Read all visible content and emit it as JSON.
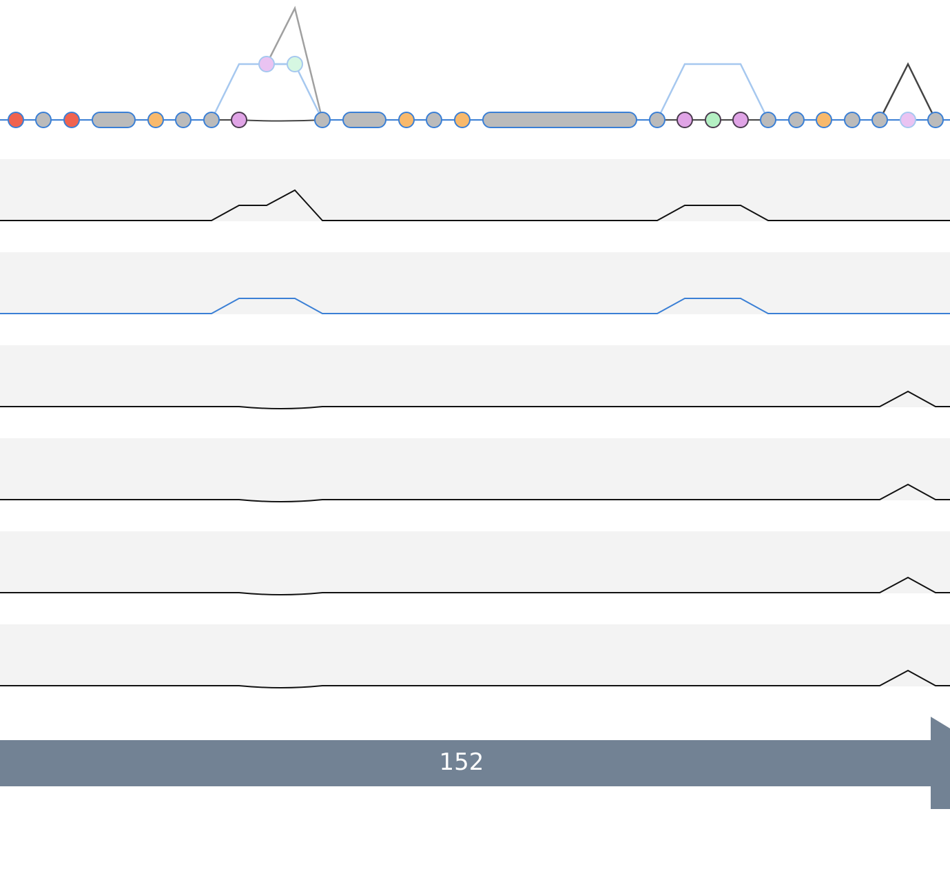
{
  "colors": {
    "background": "#ffffff",
    "track_background": "#f3f3f3",
    "backbone": "#3a7fd5",
    "alt_path": "#a6c8ef",
    "dark_path": "#444444",
    "gray_path": "#a0a0a0",
    "node_gray": "#bbbbbb",
    "node_red": "#f0634f",
    "node_orange": "#f8b96c",
    "node_pink": "#e0a4e6",
    "node_pink_light": "#eac3f2",
    "node_green": "#b4f0c3",
    "node_green_light": "#d6f7e2",
    "node_stroke_dark": "#4a3a4e",
    "track_line_black": "#111111",
    "track_line_blue": "#3a7fd5",
    "arrow_fill": "#728294",
    "arrow_text": "#ffffff"
  },
  "graph": {
    "nodes": [
      {
        "shape": "circle",
        "fill": "node_red",
        "stroke": "backbone"
      },
      {
        "shape": "circle",
        "fill": "node_gray",
        "stroke": "backbone"
      },
      {
        "shape": "circle",
        "fill": "node_red",
        "stroke": "backbone"
      },
      {
        "shape": "pill",
        "fill": "node_gray",
        "stroke": "backbone"
      },
      {
        "shape": "circle",
        "fill": "node_orange",
        "stroke": "backbone"
      },
      {
        "shape": "circle",
        "fill": "node_gray",
        "stroke": "backbone"
      },
      {
        "shape": "circle",
        "fill": "node_gray",
        "stroke": "backbone"
      },
      {
        "shape": "circle",
        "fill": "node_pink",
        "stroke": "node_stroke_dark"
      },
      {
        "shape": "circle",
        "fill": "node_pink_light",
        "stroke": "alt_path"
      },
      {
        "shape": "circle",
        "fill": "node_green_light",
        "stroke": "alt_path"
      },
      {
        "shape": "circle",
        "fill": "node_gray",
        "stroke": "backbone"
      },
      {
        "shape": "pill",
        "fill": "node_gray",
        "stroke": "backbone"
      },
      {
        "shape": "circle",
        "fill": "node_orange",
        "stroke": "backbone"
      },
      {
        "shape": "circle",
        "fill": "node_gray",
        "stroke": "backbone"
      },
      {
        "shape": "circle",
        "fill": "node_orange",
        "stroke": "backbone"
      },
      {
        "shape": "pill",
        "fill": "node_gray",
        "stroke": "backbone"
      },
      {
        "shape": "circle",
        "fill": "node_gray",
        "stroke": "backbone"
      },
      {
        "shape": "circle",
        "fill": "node_pink",
        "stroke": "node_stroke_dark"
      },
      {
        "shape": "circle",
        "fill": "node_green",
        "stroke": "node_stroke_dark"
      },
      {
        "shape": "circle",
        "fill": "node_pink",
        "stroke": "node_stroke_dark"
      },
      {
        "shape": "circle",
        "fill": "node_gray",
        "stroke": "backbone"
      },
      {
        "shape": "circle",
        "fill": "node_gray",
        "stroke": "backbone"
      },
      {
        "shape": "circle",
        "fill": "node_orange",
        "stroke": "backbone"
      },
      {
        "shape": "circle",
        "fill": "node_gray",
        "stroke": "backbone"
      },
      {
        "shape": "circle",
        "fill": "node_gray",
        "stroke": "backbone"
      },
      {
        "shape": "circle",
        "fill": "node_pink_light",
        "stroke": "alt_path"
      },
      {
        "shape": "circle",
        "fill": "node_gray",
        "stroke": "backbone"
      }
    ]
  },
  "tracks": [
    {
      "line_color": "track_line_black",
      "shape": "bumps-both"
    },
    {
      "line_color": "track_line_blue",
      "shape": "plateaus"
    },
    {
      "line_color": "track_line_black",
      "shape": "dip-and-peak"
    },
    {
      "line_color": "track_line_black",
      "shape": "dip-and-peak"
    },
    {
      "line_color": "track_line_black",
      "shape": "dip-and-peak"
    },
    {
      "line_color": "track_line_black",
      "shape": "dip-and-peak"
    }
  ],
  "arrow": {
    "label": "152",
    "direction": "right"
  }
}
